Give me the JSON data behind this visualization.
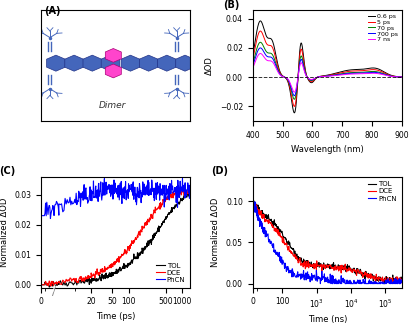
{
  "panel_B": {
    "xlabel": "Wavelength (nm)",
    "ylabel": "ΔOD",
    "xlim": [
      400,
      900
    ],
    "ylim": [
      -0.03,
      0.045
    ],
    "yticks": [
      -0.02,
      0.0,
      0.02,
      0.04
    ],
    "xticks": [
      400,
      500,
      600,
      700,
      800,
      900
    ],
    "legend": [
      "0.6 ps",
      "5 ps",
      "70 ps",
      "700 ps",
      "7 ns"
    ],
    "colors": [
      "black",
      "red",
      "green",
      "blue",
      "magenta"
    ]
  },
  "panel_C": {
    "xlabel": "Time (ps)",
    "ylabel": "Normalized ΔOD",
    "ylim": [
      -0.001,
      0.036
    ],
    "yticks": [
      0.0,
      0.01,
      0.02,
      0.03
    ],
    "xtick_positions": [
      0,
      5,
      20,
      50,
      100,
      500,
      1000
    ],
    "xtick_labels": [
      "0",
      "",
      "20",
      "50",
      "100",
      "500",
      "1000"
    ],
    "legend": [
      "TOL",
      "DCE",
      "PhCN"
    ],
    "colors": [
      "black",
      "red",
      "blue"
    ]
  },
  "panel_D": {
    "xlabel": "Time (ns)",
    "ylabel": "Normalized ΔOD",
    "ylim": [
      -0.005,
      0.13
    ],
    "yticks": [
      0.0,
      0.05,
      0.1
    ],
    "legend": [
      "TOL",
      "DCE",
      "PhCN"
    ],
    "colors": [
      "black",
      "red",
      "blue"
    ]
  },
  "hex_color_blue": "#4466BB",
  "hex_color_magenta": "#FF44CC",
  "figure_bg": "white"
}
